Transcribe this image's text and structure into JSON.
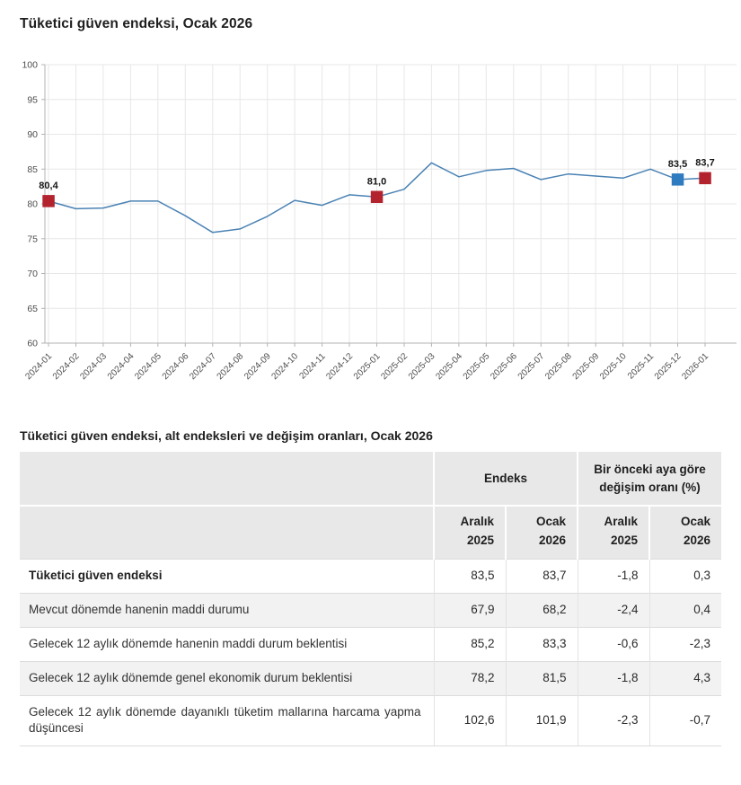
{
  "page": {
    "chart_title": "Tüketici güven endeksi, Ocak 2026",
    "table_title": "Tüketici güven endeksi, alt endeksleri ve değişim oranları, Ocak 2026"
  },
  "colors": {
    "line": "#4a82b4",
    "marker_red": "#b2232e",
    "marker_blue": "#2e7bbf",
    "grid": "#e7e7e7",
    "axis": "#b3b3b3",
    "tick_text": "#4d4d4d",
    "header_bg": "#e8e8e8",
    "alt_row_bg": "#f2f2f2"
  },
  "chart_data": {
    "type": "line",
    "title": "Tüketici güven endeksi, Ocak 2026",
    "x": [
      "2024-01",
      "2024-02",
      "2024-03",
      "2024-04",
      "2024-05",
      "2024-06",
      "2024-07",
      "2024-08",
      "2024-09",
      "2024-10",
      "2024-11",
      "2024-12",
      "2025-01",
      "2025-02",
      "2025-03",
      "2025-04",
      "2025-05",
      "2025-06",
      "2025-07",
      "2025-08",
      "2025-09",
      "2025-10",
      "2025-11",
      "2025-12",
      "2026-01"
    ],
    "values": [
      80.4,
      79.3,
      79.4,
      80.4,
      80.4,
      78.3,
      75.9,
      76.4,
      78.2,
      80.5,
      79.8,
      81.3,
      81.0,
      82.1,
      85.9,
      83.9,
      84.8,
      85.1,
      83.5,
      84.3,
      84.0,
      83.7,
      85.0,
      83.5,
      83.7
    ],
    "ylim": [
      60,
      100
    ],
    "ytick_step": 5,
    "grid": true,
    "legend": "none",
    "highlighted_points": [
      {
        "x": "2024-01",
        "value": 80.4,
        "label": "80,4",
        "color": "red"
      },
      {
        "x": "2025-01",
        "value": 81.0,
        "label": "81,0",
        "color": "red"
      },
      {
        "x": "2025-12",
        "value": 83.5,
        "label": "83,5",
        "color": "blue"
      },
      {
        "x": "2026-01",
        "value": 83.7,
        "label": "83,7",
        "color": "red"
      }
    ]
  },
  "table": {
    "group_headers": [
      {
        "label": "",
        "span": 1
      },
      {
        "label": "Endeks",
        "span": 2
      },
      {
        "label": "Bir önceki aya göre değişim oranı (%)",
        "span": 2
      }
    ],
    "col_headers": [
      "",
      "Aralık\n2025",
      "Ocak\n2026",
      "Aralık\n2025",
      "Ocak\n2026"
    ],
    "rows": [
      {
        "label": "Tüketici güven endeksi",
        "bold": true,
        "values": [
          "83,5",
          "83,7",
          "-1,8",
          "0,3"
        ]
      },
      {
        "label": "Mevcut dönemde hanenin maddi durumu",
        "bold": false,
        "values": [
          "67,9",
          "68,2",
          "-2,4",
          "0,4"
        ]
      },
      {
        "label": "Gelecek 12 aylık dönemde hanenin maddi durum beklentisi",
        "bold": false,
        "values": [
          "85,2",
          "83,3",
          "-0,6",
          "-2,3"
        ]
      },
      {
        "label": "Gelecek 12 aylık dönemde genel ekonomik durum beklentisi",
        "bold": false,
        "values": [
          "78,2",
          "81,5",
          "-1,8",
          "4,3"
        ]
      },
      {
        "label": "Gelecek 12 aylık dönemde dayanıklı tüketim mallarına harcama yapma düşüncesi",
        "bold": false,
        "values": [
          "102,6",
          "101,9",
          "-2,3",
          "-0,7"
        ]
      }
    ]
  }
}
